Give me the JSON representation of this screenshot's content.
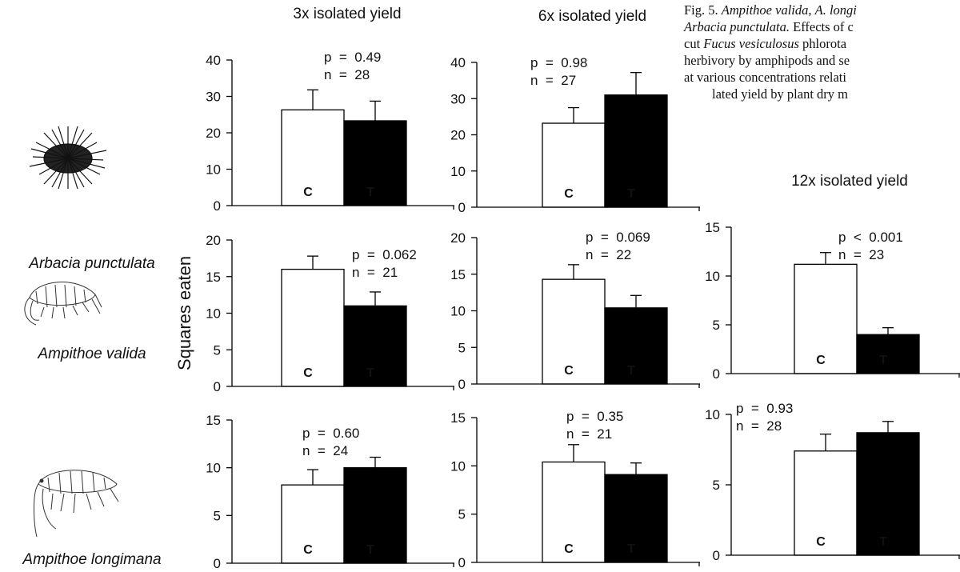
{
  "caption": [
    [
      {
        "text": "Fig. 5. "
      },
      {
        "text": "Ampithoe valida",
        "italic": true
      },
      {
        "text": ", "
      },
      {
        "text": "A. longi",
        "italic": true
      }
    ],
    [
      {
        "text": "Arbacia punctulata.",
        "italic": true
      },
      {
        "text": " Effects of c"
      }
    ],
    [
      {
        "text": "cut "
      },
      {
        "text": "Fucus vesiculosus",
        "italic": true
      },
      {
        "text": " phlorota"
      }
    ],
    [
      {
        "text": "herbivory by amphipods and se"
      }
    ],
    [
      {
        "text": "at various concentrations relati"
      }
    ],
    [
      {
        "text": "lated yield by plant dry m"
      }
    ]
  ],
  "row_labels": [
    "Arbacia punctulata",
    "Ampithoe valida",
    "Ampithoe longimana"
  ],
  "chart_data": [
    {
      "type": "bar",
      "title": "3x isolated yield",
      "categories": [
        "C",
        "T"
      ],
      "values": [
        26.3,
        23.3
      ],
      "errors": [
        5.5,
        5.4
      ],
      "colors": [
        "#ffffff",
        "#000000"
      ],
      "ylim": [
        0,
        40
      ],
      "yticks": [
        0,
        10,
        20,
        30,
        40
      ],
      "annotations": [
        "p  =  0.49",
        "n  =  28"
      ]
    },
    {
      "type": "bar",
      "title": "6x isolated yield",
      "categories": [
        "C",
        "T"
      ],
      "values": [
        23.2,
        31.0
      ],
      "errors": [
        4.3,
        6.2
      ],
      "colors": [
        "#ffffff",
        "#000000"
      ],
      "ylim": [
        0,
        40
      ],
      "yticks": [
        0,
        10,
        20,
        30,
        40
      ],
      "annotations": [
        "p  =  0.98",
        "n  =  27"
      ]
    },
    {
      "type": "bar",
      "ylabel": "Squares eaten",
      "categories": [
        "C",
        "T"
      ],
      "values": [
        16.0,
        11.0
      ],
      "errors": [
        1.8,
        1.9
      ],
      "colors": [
        "#ffffff",
        "#000000"
      ],
      "ylim": [
        0,
        20
      ],
      "yticks": [
        0,
        5,
        10,
        15,
        20
      ],
      "annotations": [
        "p  =  0.062",
        "n  =  21"
      ]
    },
    {
      "type": "bar",
      "categories": [
        "C",
        "T"
      ],
      "values": [
        14.3,
        10.4
      ],
      "errors": [
        2.0,
        1.7
      ],
      "colors": [
        "#ffffff",
        "#000000"
      ],
      "ylim": [
        0,
        20
      ],
      "yticks": [
        0,
        5,
        10,
        15,
        20
      ],
      "annotations": [
        "p  =  0.069",
        "n  =  22"
      ]
    },
    {
      "type": "bar",
      "title": "12x isolated yield",
      "categories": [
        "C",
        "T"
      ],
      "values": [
        11.2,
        4.0
      ],
      "errors": [
        1.2,
        0.7
      ],
      "colors": [
        "#ffffff",
        "#000000"
      ],
      "ylim": [
        0,
        15
      ],
      "yticks": [
        0,
        5,
        10,
        15
      ],
      "annotations": [
        "p  <  0.001",
        "n  =  23"
      ]
    },
    {
      "type": "bar",
      "categories": [
        "C",
        "T"
      ],
      "values": [
        8.2,
        10.0
      ],
      "errors": [
        1.6,
        1.1
      ],
      "colors": [
        "#ffffff",
        "#000000"
      ],
      "ylim": [
        0,
        15
      ],
      "yticks": [
        0,
        5,
        10,
        15
      ],
      "annotations": [
        "p  =  0.60",
        "n  =  24"
      ]
    },
    {
      "type": "bar",
      "categories": [
        "C",
        "T"
      ],
      "values": [
        10.4,
        9.1
      ],
      "errors": [
        1.8,
        1.2
      ],
      "colors": [
        "#ffffff",
        "#000000"
      ],
      "ylim": [
        0,
        15
      ],
      "yticks": [
        0,
        5,
        10,
        15
      ],
      "annotations": [
        "p  =  0.35",
        "n  =  21"
      ]
    },
    {
      "type": "bar",
      "categories": [
        "C",
        "T"
      ],
      "values": [
        7.4,
        8.7
      ],
      "errors": [
        1.2,
        0.8
      ],
      "colors": [
        "#ffffff",
        "#000000"
      ],
      "ylim": [
        0,
        10
      ],
      "yticks": [
        0,
        5,
        10
      ],
      "annotations": [
        "p  =  0.93",
        "n  =  28"
      ]
    }
  ]
}
